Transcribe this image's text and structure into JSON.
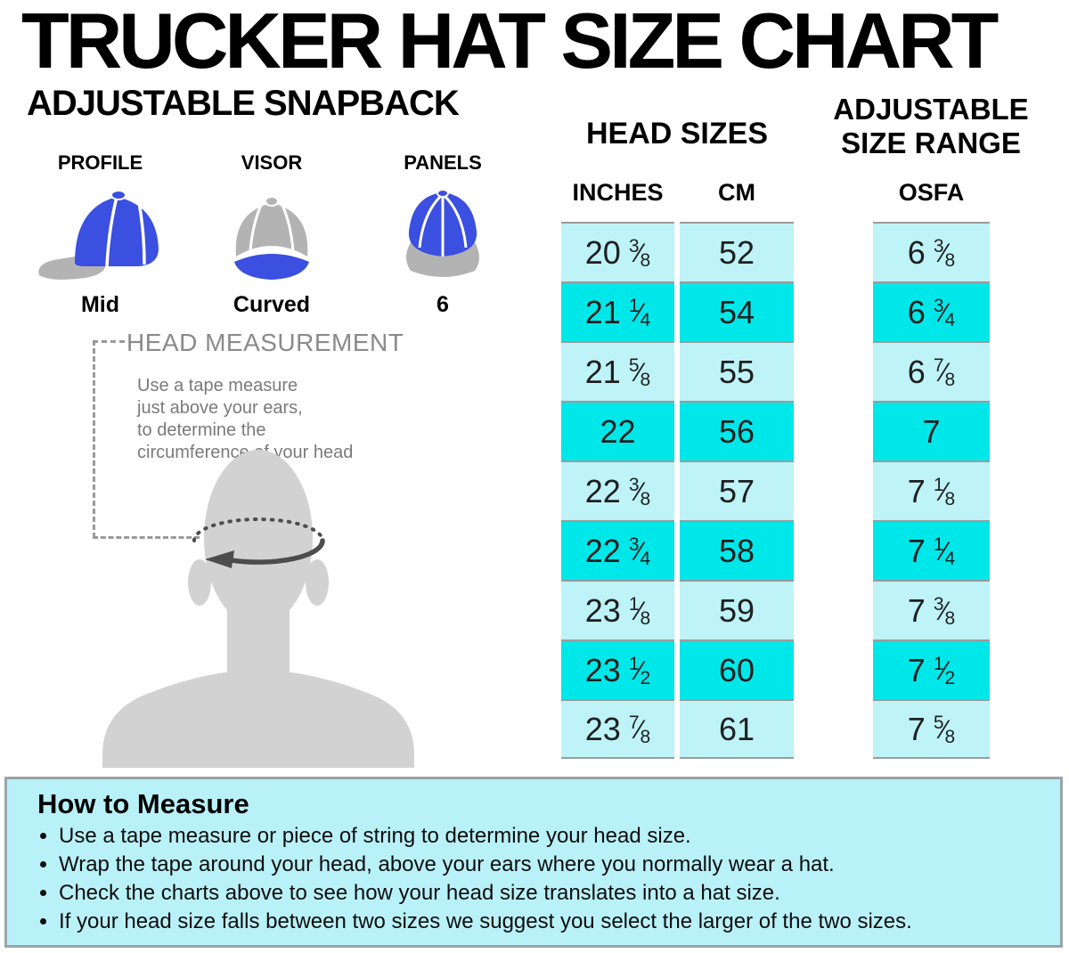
{
  "title": "TRUCKER HAT SIZE CHART",
  "subtitle": "ADJUSTABLE SNAPBACK",
  "features": [
    {
      "label": "PROFILE",
      "value": "Mid",
      "icon": "cap-side-profile-icon"
    },
    {
      "label": "VISOR",
      "value": "Curved",
      "icon": "cap-front-visor-icon"
    },
    {
      "label": "PANELS",
      "value": "6",
      "icon": "cap-top-panels-icon"
    }
  ],
  "measurement": {
    "heading": "HEAD MEASUREMENT",
    "instruction_lines": [
      "Use a tape measure",
      "just above your ears,",
      "to determine the",
      "circumference of your head"
    ]
  },
  "head_sizes": {
    "title": "HEAD SIZES",
    "col_inches": "INCHES",
    "col_cm": "CM"
  },
  "adjustable": {
    "title_line1": "ADJUSTABLE",
    "title_line2": "SIZE RANGE",
    "col_osfa": "OSFA"
  },
  "chart_data": {
    "type": "table",
    "title": "TRUCKER HAT SIZE CHART",
    "subtitle": "ADJUSTABLE SNAPBACK",
    "columns": [
      "HEAD SIZES — INCHES",
      "HEAD SIZES — CM",
      "ADJUSTABLE SIZE RANGE — OSFA"
    ],
    "rows": [
      {
        "inches": "20 3/8",
        "cm": "52",
        "osfa": "6 3/8",
        "highlighted": false
      },
      {
        "inches": "21 1/4",
        "cm": "54",
        "osfa": "6 3/4",
        "highlighted": true
      },
      {
        "inches": "21 5/8",
        "cm": "55",
        "osfa": "6 7/8",
        "highlighted": false
      },
      {
        "inches": "22",
        "cm": "56",
        "osfa": "7",
        "highlighted": true
      },
      {
        "inches": "22 3/8",
        "cm": "57",
        "osfa": "7 1/8",
        "highlighted": false
      },
      {
        "inches": "22 3/4",
        "cm": "58",
        "osfa": "7 1/4",
        "highlighted": true
      },
      {
        "inches": "23 1/8",
        "cm": "59",
        "osfa": "7 3/8",
        "highlighted": false
      },
      {
        "inches": "23 1/2",
        "cm": "60",
        "osfa": "7 1/2",
        "highlighted": true
      },
      {
        "inches": "23 7/8",
        "cm": "61",
        "osfa": "7 5/8",
        "highlighted": false
      }
    ]
  },
  "how_to_measure": {
    "title": "How to Measure",
    "bullets": [
      "Use a tape measure or piece of string to determine your head size.",
      "Wrap the tape around your head, above your ears where you normally wear a hat.",
      "Check the charts above to see how your head size translates into a hat size.",
      "If your head size falls between two sizes we suggest you select the larger of the two sizes."
    ]
  },
  "colors": {
    "accent_blue": "#3B4FE0",
    "hat_gray": "#B3B3B3",
    "silhouette_gray": "#D2D2D2",
    "tape_gray": "#4d4d4d",
    "row_light_cyan": "#BEF3F8",
    "row_bright_cyan": "#00E7E9",
    "cell_border_gray": "#9B9B9B",
    "panel_background": "#B9F1F8",
    "panel_border": "#99A4AA"
  }
}
